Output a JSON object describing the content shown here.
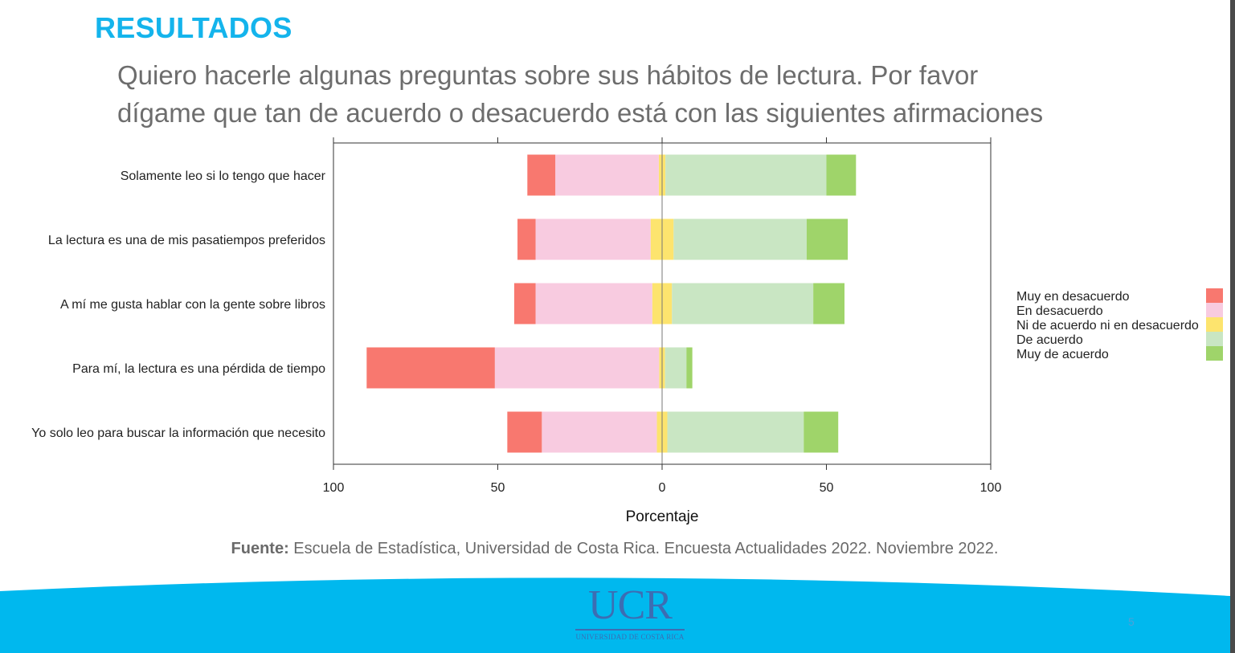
{
  "slide": {
    "title": "RESULTADOS",
    "subtitle_line1": "Quiero hacerle algunas preguntas sobre sus hábitos de lectura. Por favor",
    "subtitle_line2": "dígame que tan de acuerdo o desacuerdo está con las siguientes afirmaciones",
    "source_label": "Fuente:",
    "source_text": " Escuela de Estadística, Universidad de Costa Rica. Encuesta Actualidades 2022. Noviembre 2022.",
    "logo_text": "UCR",
    "logo_subtext": "UNIVERSIDAD DE COSTA RICA",
    "page_number": "5",
    "colors": {
      "title": "#14b4ec",
      "footer": "#00b8ee",
      "logo": "#3c6db3"
    }
  },
  "chart_data": {
    "type": "bar",
    "orientation": "horizontal",
    "stacked": "diverging",
    "title": "",
    "xlabel": "Porcentaje",
    "ylabel": "",
    "xlim": [
      -100,
      100
    ],
    "x_ticks": [
      -100,
      -50,
      0,
      50,
      100
    ],
    "x_tick_labels": [
      "100",
      "50",
      "0",
      "50",
      "100"
    ],
    "grid": false,
    "legend_position": "right",
    "categories": [
      "Solamente leo si lo tengo que hacer",
      "La lectura es una de mis pasatiempos preferidos",
      "A mí me gusta hablar con la gente sobre libros",
      "Para mí, la lectura es una pérdida de tiempo",
      "Yo solo leo para buscar la información que necesito"
    ],
    "series": [
      {
        "name": "Muy en desacuerdo",
        "color": "#f8786f",
        "values": [
          8.5,
          5.5,
          6.5,
          39,
          10.5
        ]
      },
      {
        "name": "En desacuerdo",
        "color": "#f8cbe0",
        "values": [
          31.5,
          35,
          35.5,
          50,
          35
        ]
      },
      {
        "name": "Ni de acuerdo ni en desacuerdo",
        "color": "#fde46e",
        "values": [
          2,
          7,
          6,
          1.8,
          3.2
        ]
      },
      {
        "name": "De acuerdo",
        "color": "#c9e6c3",
        "values": [
          49,
          40.5,
          43,
          6.5,
          41.5
        ]
      },
      {
        "name": "Muy de acuerdo",
        "color": "#9fd46a",
        "values": [
          9,
          12.5,
          9.5,
          1.8,
          10.5
        ]
      }
    ]
  }
}
